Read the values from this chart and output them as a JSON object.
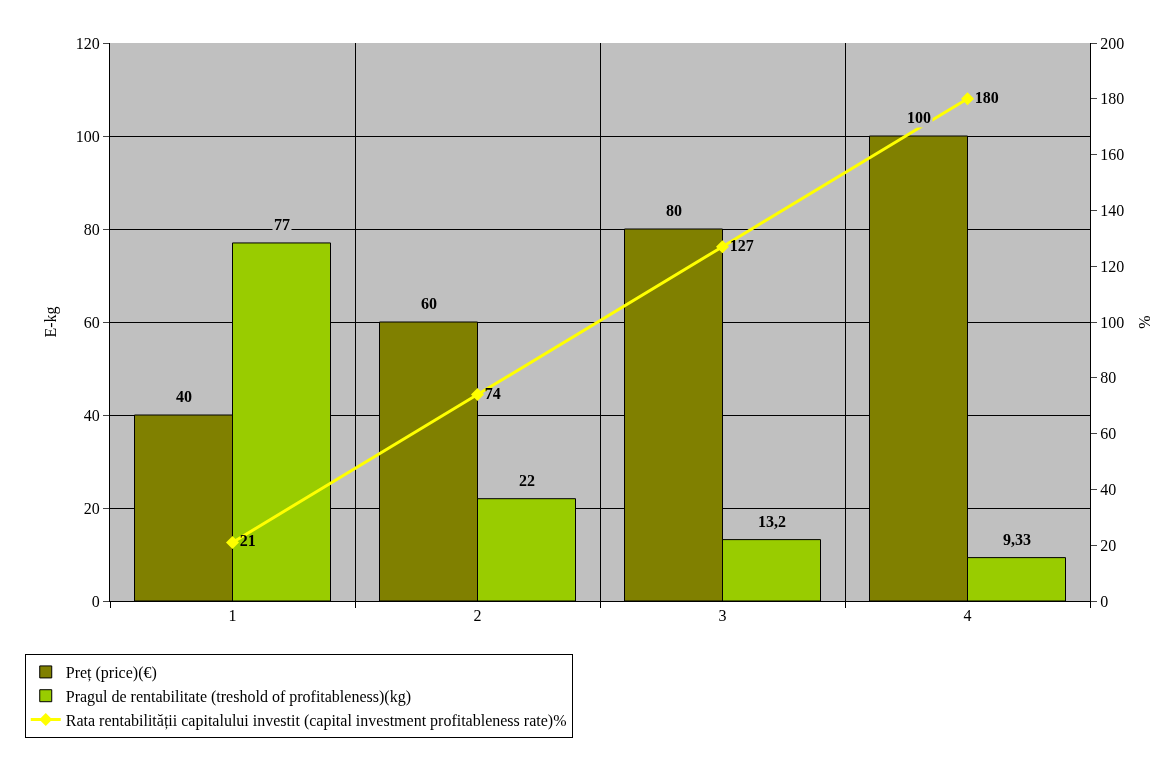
{
  "chart_data": {
    "type": "bar",
    "categories": [
      "1",
      "2",
      "3",
      "4"
    ],
    "series": [
      {
        "name": "Preț (price)(€)",
        "color": "#808000",
        "values": [
          40,
          60,
          80,
          100
        ],
        "value_labels": [
          "40",
          "60",
          "80",
          "100"
        ]
      },
      {
        "name": "Pragul de rentabilitate (treshold of profitableness)(kg)",
        "color": "#99cc00",
        "values": [
          77,
          22,
          13.2,
          9.33
        ],
        "value_labels": [
          "77",
          "22",
          "13,2",
          "9,33"
        ]
      },
      {
        "name": "Rata rentabilității capitalului investit (capital investment profitableness rate)%",
        "type": "line",
        "axis": "y2",
        "color": "#ffff00",
        "values": [
          21,
          74,
          127,
          180
        ],
        "value_labels": [
          "21",
          "74",
          "127",
          "180"
        ]
      }
    ],
    "ylabel": "E-kg",
    "y2label": "%",
    "ylim": [
      0,
      120
    ],
    "yticks": [
      0,
      20,
      40,
      60,
      80,
      100,
      120
    ],
    "y2lim": [
      0,
      200
    ],
    "y2ticks": [
      0,
      20,
      40,
      60,
      80,
      100,
      120,
      140,
      160,
      180,
      200
    ],
    "grid": true,
    "legend": "bottom left",
    "marker": "diamond",
    "line_style": "solid"
  }
}
